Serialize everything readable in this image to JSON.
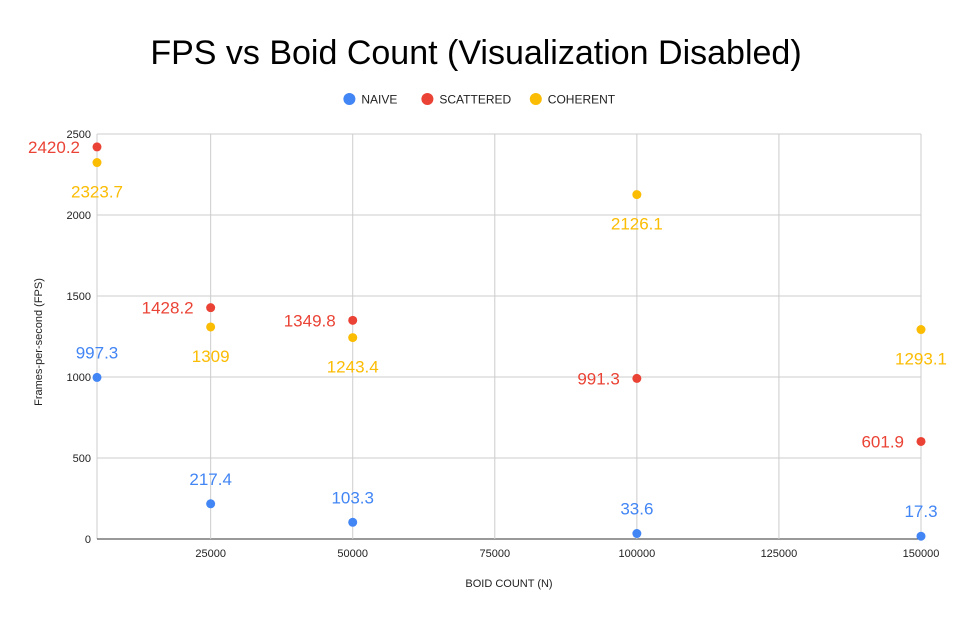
{
  "chart_data": {
    "type": "scatter",
    "title": "FPS vs Boid Count (Visualization Disabled)",
    "xlabel": "BOID COUNT (N)",
    "ylabel": "Frames-per-second (FPS)",
    "xlim": [
      5000,
      150000
    ],
    "ylim": [
      0,
      2500
    ],
    "x_ticks": [
      25000,
      50000,
      75000,
      100000,
      125000,
      150000
    ],
    "y_ticks": [
      0,
      500,
      1000,
      1500,
      2000,
      2500
    ],
    "legend_position": "top",
    "grid": true,
    "series": [
      {
        "name": "NAIVE",
        "color": "#4285f4",
        "points": [
          {
            "x": 5000,
            "y": 997.3,
            "label": "997.3"
          },
          {
            "x": 25000,
            "y": 217.4,
            "label": "217.4"
          },
          {
            "x": 50000,
            "y": 103.3,
            "label": "103.3"
          },
          {
            "x": 100000,
            "y": 33.6,
            "label": "33.6"
          },
          {
            "x": 150000,
            "y": 17.3,
            "label": "17.3"
          }
        ]
      },
      {
        "name": "SCATTERED",
        "color": "#ea4335",
        "points": [
          {
            "x": 5000,
            "y": 2420.2,
            "label": "2420.2"
          },
          {
            "x": 25000,
            "y": 1428.2,
            "label": "1428.2"
          },
          {
            "x": 50000,
            "y": 1349.8,
            "label": "1349.8"
          },
          {
            "x": 100000,
            "y": 991.3,
            "label": "991.3"
          },
          {
            "x": 150000,
            "y": 601.9,
            "label": "601.9"
          }
        ]
      },
      {
        "name": "COHERENT",
        "color": "#fbbc04",
        "points": [
          {
            "x": 5000,
            "y": 2323.7,
            "label": "2323.7"
          },
          {
            "x": 25000,
            "y": 1309,
            "label": "1309"
          },
          {
            "x": 50000,
            "y": 1243.4,
            "label": "1243.4"
          },
          {
            "x": 100000,
            "y": 2126.1,
            "label": "2126.1"
          },
          {
            "x": 150000,
            "y": 1293.1,
            "label": "1293.1"
          }
        ]
      }
    ]
  }
}
